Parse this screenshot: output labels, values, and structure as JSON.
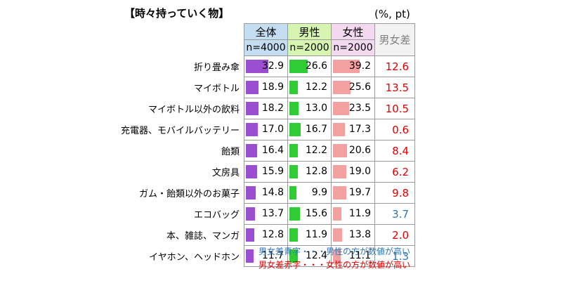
{
  "title": "【時々持っていく物】",
  "unit": "(%, pt)",
  "headers": {
    "all": {
      "label": "全体",
      "n": "n=4000"
    },
    "male": {
      "label": "男性",
      "n": "n=2000"
    },
    "female": {
      "label": "女性",
      "n": "n=2000"
    },
    "diff": "男女差"
  },
  "colors": {
    "all_bar": "#9b4fd0",
    "male_bar": "#2fcc35",
    "female_bar": "#f3a0a0",
    "diff_blue": "#2e75b6",
    "diff_red": "#e00000"
  },
  "notes": {
    "blue": "男女差青字・・・男性の方が数値が高い",
    "red": "男女差赤字・・・女性の方が数値が高い"
  },
  "chart_data": {
    "type": "table",
    "title": "【時々持っていく物】",
    "unit": "(%, pt)",
    "categories": [
      "折り畳み傘",
      "マイボトル",
      "マイボトル以外の飲料",
      "充電器、モバイルバッテリー",
      "飴類",
      "文房具",
      "ガム・飴類以外のお菓子",
      "エコバッグ",
      "本、雑誌、マンガ",
      "イヤホン、ヘッドホン"
    ],
    "series": [
      {
        "name": "全体",
        "values": [
          32.9,
          18.9,
          18.2,
          17.0,
          16.4,
          15.9,
          14.8,
          13.7,
          12.8,
          11.7
        ]
      },
      {
        "name": "男性",
        "values": [
          26.6,
          12.2,
          13.0,
          16.7,
          12.2,
          12.8,
          9.9,
          15.6,
          11.9,
          12.4
        ]
      },
      {
        "name": "女性",
        "values": [
          39.2,
          25.6,
          23.5,
          17.3,
          20.6,
          19.0,
          19.7,
          11.9,
          13.8,
          11.1
        ]
      }
    ],
    "diff": {
      "name": "男女差",
      "values": [
        "12.6",
        "13.5",
        "10.5",
        "0.6",
        "8.4",
        "6.2",
        "9.8",
        "3.7",
        "2.0",
        "1.3"
      ],
      "higher": [
        "female",
        "female",
        "female",
        "female",
        "female",
        "female",
        "female",
        "male",
        "female",
        "male"
      ]
    },
    "bar_max": 40
  }
}
